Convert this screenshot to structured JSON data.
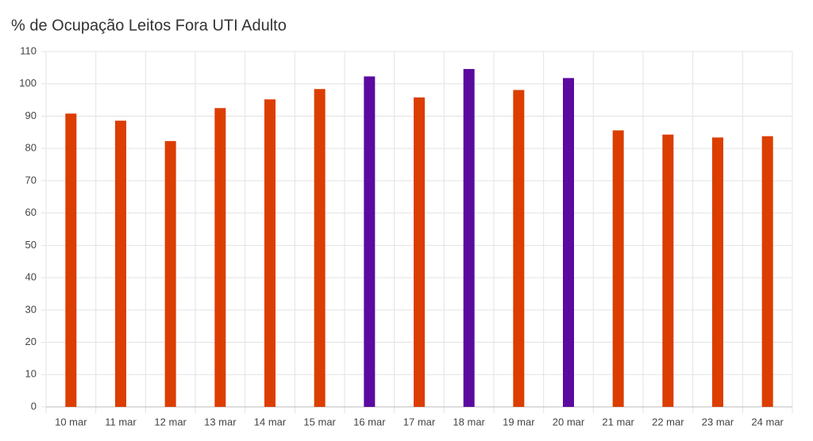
{
  "chart_data": {
    "type": "bar",
    "title": "% de Ocupação Leitos Fora UTI Adulto",
    "categories": [
      "10 mar",
      "11 mar",
      "12 mar",
      "13 mar",
      "14 mar",
      "15 mar",
      "16 mar",
      "17 mar",
      "18 mar",
      "19 mar",
      "20 mar",
      "21 mar",
      "22 mar",
      "23 mar",
      "24 mar"
    ],
    "values": [
      90.8,
      88.6,
      82.3,
      92.5,
      95.2,
      98.4,
      102.3,
      95.8,
      104.6,
      98.1,
      101.8,
      85.6,
      84.3,
      83.4,
      83.8
    ],
    "colors": [
      "#dc3d00",
      "#dc3d00",
      "#dc3d00",
      "#dc3d00",
      "#dc3d00",
      "#dc3d00",
      "#5b0aa0",
      "#dc3d00",
      "#5b0aa0",
      "#dc3d00",
      "#5b0aa0",
      "#dc3d00",
      "#dc3d00",
      "#dc3d00",
      "#dc3d00"
    ],
    "ylim": [
      0,
      110
    ],
    "yticks": [
      0,
      10,
      20,
      30,
      40,
      50,
      60,
      70,
      80,
      90,
      100,
      110
    ],
    "grid": true
  }
}
